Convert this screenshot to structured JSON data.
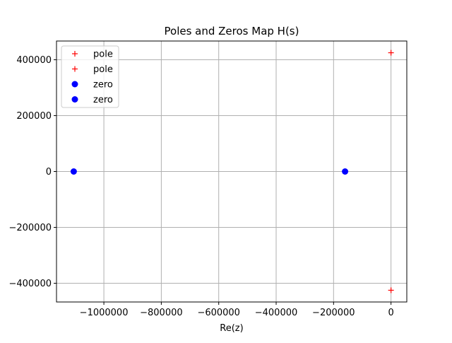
{
  "chart_data": {
    "type": "scatter",
    "title": "Poles and Zeros Map H(s)",
    "xlabel": "Re(z)",
    "ylabel": "",
    "xlim": [
      -1165000,
      55000
    ],
    "ylim": [
      -467000,
      467000
    ],
    "xticks": [
      -1000000,
      -800000,
      -600000,
      -400000,
      -200000,
      0
    ],
    "xtick_labels": [
      "−1000000",
      "−800000",
      "−600000",
      "−400000",
      "−200000",
      "0"
    ],
    "yticks": [
      -400000,
      -200000,
      0,
      200000,
      400000
    ],
    "ytick_labels": [
      "−400000",
      "−200000",
      "0",
      "200000",
      "400000"
    ],
    "grid": true,
    "legend_position": "top-left",
    "series": [
      {
        "name": "pole",
        "marker": "plus",
        "color": "#ff0000",
        "points": [
          {
            "x": 0,
            "y": 425000
          }
        ]
      },
      {
        "name": "pole",
        "marker": "plus",
        "color": "#ff0000",
        "points": [
          {
            "x": 0,
            "y": -425000
          }
        ]
      },
      {
        "name": "zero",
        "marker": "circle",
        "color": "#0000ff",
        "points": [
          {
            "x": -1105000,
            "y": 0
          }
        ]
      },
      {
        "name": "zero",
        "marker": "circle",
        "color": "#0000ff",
        "points": [
          {
            "x": -160000,
            "y": 0
          }
        ]
      }
    ]
  }
}
